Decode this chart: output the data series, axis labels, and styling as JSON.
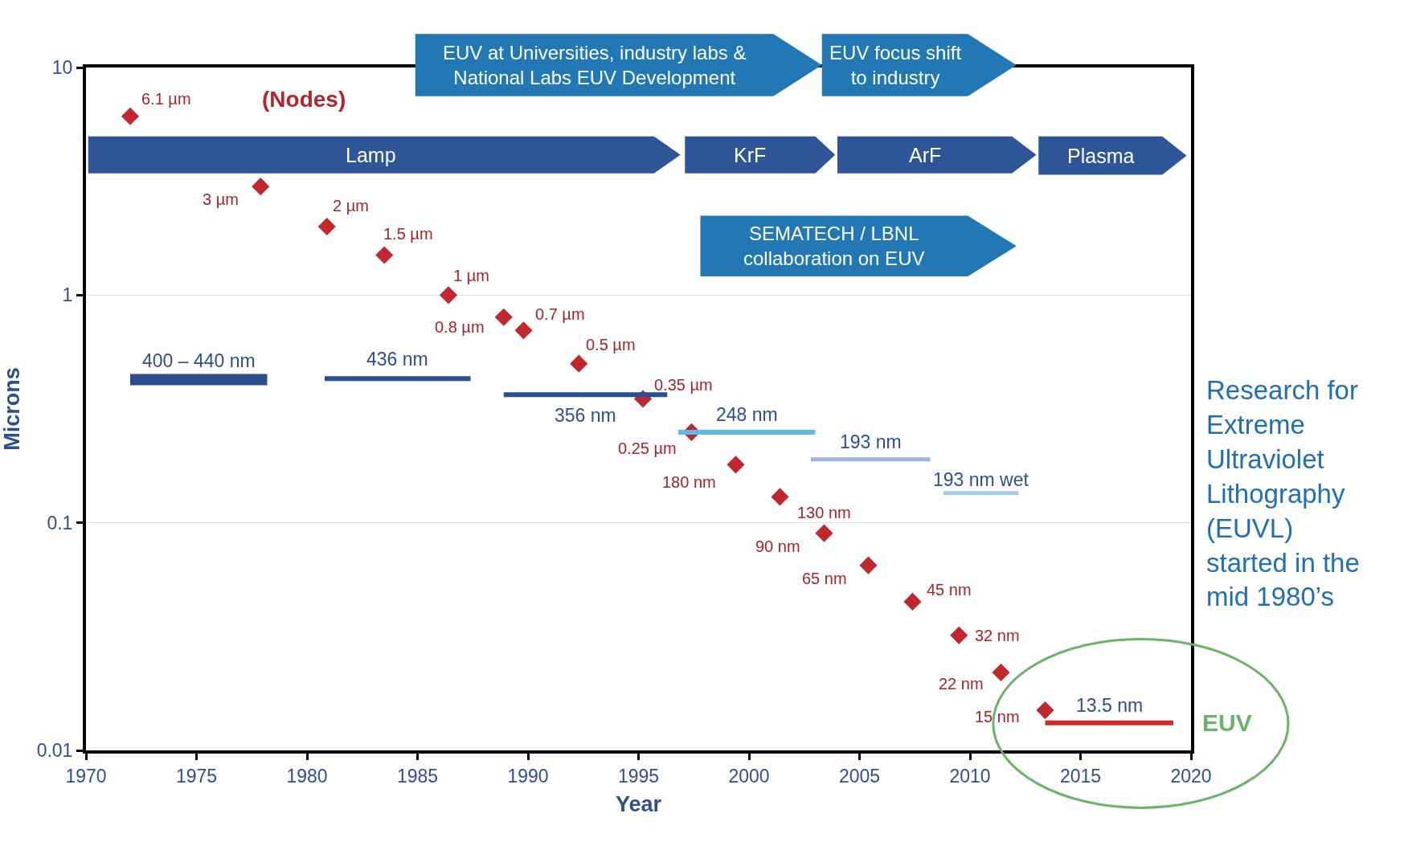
{
  "chart_data": {
    "type": "scatter",
    "xlabel": "Year",
    "ylabel": "Microns",
    "log": "y",
    "grid": "y",
    "legend": false,
    "xlim": [
      1970,
      2020
    ],
    "xticks": [
      1970,
      1975,
      1980,
      1985,
      1990,
      1995,
      2000,
      2005,
      2010,
      2015,
      2020
    ],
    "ylim": [
      0.01,
      10
    ],
    "yticks": [
      0.01,
      0.1,
      1,
      10
    ],
    "series": [
      {
        "marker": "diamond",
        "color": "#c1272d",
        "x": [
          1972.0,
          1977.9,
          1980.9,
          1983.5,
          1986.4,
          1988.9,
          1989.8,
          1992.3,
          1995.2,
          1997.4,
          1999.4,
          2001.4,
          2003.4,
          2005.4,
          2007.4,
          2009.5,
          2011.4,
          2013.4
        ],
        "values": [
          6.1,
          3,
          2,
          1.5,
          1,
          0.8,
          0.7,
          0.5,
          0.35,
          0.25,
          0.18,
          0.13,
          0.09,
          0.065,
          0.045,
          0.032,
          0.022,
          0.015
        ]
      },
      {
        "type": "line",
        "marker": "none",
        "name": "400 – 440 nm",
        "color": "#2b4e8e",
        "x": [
          1972.0,
          1978.2
        ],
        "values": [
          0.425,
          0.425
        ]
      },
      {
        "type": "line",
        "marker": "none",
        "name": "436 nm",
        "color": "#2b4e8e",
        "x": [
          1980.8,
          1987.4
        ],
        "values": [
          0.43,
          0.43
        ]
      },
      {
        "type": "line",
        "marker": "none",
        "name": "356 nm",
        "color": "#2b4e8e",
        "x": [
          1988.9,
          1996.3
        ],
        "values": [
          0.365,
          0.365
        ]
      },
      {
        "type": "line",
        "marker": "none",
        "name": "248 nm",
        "color": "#5bbcea",
        "x": [
          1996.8,
          2003.0
        ],
        "values": [
          0.25,
          0.25
        ]
      },
      {
        "type": "line",
        "marker": "none",
        "name": "193 nm",
        "color": "#9bb7de",
        "x": [
          2002.8,
          2008.2
        ],
        "values": [
          0.19,
          0.19
        ]
      },
      {
        "type": "line",
        "marker": "none",
        "name": "193 nm wet",
        "color": "#a9c9ec",
        "x": [
          2008.8,
          2012.2
        ],
        "values": [
          0.135,
          0.135
        ]
      },
      {
        "type": "line",
        "marker": "none",
        "name": "13.5 nm",
        "color": "#d42a2a",
        "x": [
          2013.4,
          2019.2
        ],
        "values": [
          0.0132,
          0.0132
        ]
      }
    ],
    "bands": [
      {
        "axis": "x",
        "from": 1970.1,
        "to": 1996.9,
        "label": "Lamp",
        "color": "#2e5597"
      },
      {
        "axis": "x",
        "from": 1997.1,
        "to": 2003.9,
        "label": "KrF",
        "color": "#2e5597"
      },
      {
        "axis": "x",
        "from": 2004.0,
        "to": 2013.0,
        "label": "ArF",
        "color": "#2e5597"
      },
      {
        "axis": "x",
        "from": 2013.1,
        "to": 2019.8,
        "label": "Plasma",
        "color": "#2e5597"
      },
      {
        "axis": "x",
        "from": 1984.9,
        "to": 2003.3,
        "label": "EUV at Universities, industry labs &\nNational Labs EUV Development",
        "color": "#2277b5"
      },
      {
        "axis": "x",
        "from": 2003.3,
        "to": 2012.1,
        "label": "EUV focus shift\nto industry",
        "color": "#2277b5"
      },
      {
        "axis": "x",
        "from": 1997.8,
        "to": 2012.1,
        "label": "SEMATECH / LBNL\ncollaboration on EUV",
        "color": "#2277b5"
      }
    ],
    "annotations": [
      {
        "text": "6.1 µm",
        "x": 1972.0,
        "y": 6.1
      },
      {
        "text": "3 µm",
        "x": 1977.9,
        "y": 3
      },
      {
        "text": "2 µm",
        "x": 1980.9,
        "y": 2
      },
      {
        "text": "1.5 µm",
        "x": 1983.5,
        "y": 1.5
      },
      {
        "text": "1 µm",
        "x": 1986.4,
        "y": 1
      },
      {
        "text": "0.8 µm",
        "x": 1988.9,
        "y": 0.8
      },
      {
        "text": "0.7 µm",
        "x": 1989.8,
        "y": 0.7
      },
      {
        "text": "0.5 µm",
        "x": 1992.3,
        "y": 0.5
      },
      {
        "text": "0.35 µm",
        "x": 1995.2,
        "y": 0.35
      },
      {
        "text": "0.25 µm",
        "x": 1997.4,
        "y": 0.25
      },
      {
        "text": "180 nm",
        "x": 1999.4,
        "y": 0.18
      },
      {
        "text": "130 nm",
        "x": 2001.4,
        "y": 0.13
      },
      {
        "text": "90 nm",
        "x": 2003.4,
        "y": 0.09
      },
      {
        "text": "65 nm",
        "x": 2005.4,
        "y": 0.065
      },
      {
        "text": "45 nm",
        "x": 2007.4,
        "y": 0.045
      },
      {
        "text": "32 nm",
        "x": 2009.5,
        "y": 0.032
      },
      {
        "text": "22 nm",
        "x": 2011.4,
        "y": 0.022
      },
      {
        "text": "15 nm",
        "x": 2013.4,
        "y": 0.015
      },
      "(Nodes)",
      "EUV",
      "Research for\nExtreme\nUltraviolet\nLithography\n(EUVL)\nstarted in the\nmid 1980’s"
    ]
  }
}
